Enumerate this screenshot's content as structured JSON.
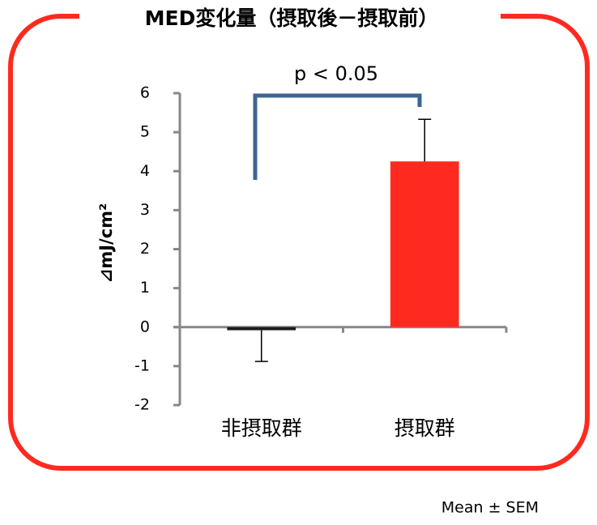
{
  "chart_data": {
    "type": "bar",
    "title": "MED変化量（摂取後－摂取前）",
    "y_label": "⊿mJ/cm²",
    "categories": [
      "非摂取群",
      "摂取群"
    ],
    "values": [
      -0.08,
      4.25
    ],
    "errors": [
      0.8,
      1.08
    ],
    "colors": [
      "#1a1a1a",
      "#ff2a1f"
    ],
    "ylim": [
      -2,
      6
    ],
    "yticks": [
      -2,
      -1,
      0,
      1,
      2,
      3,
      4,
      5,
      6
    ],
    "annotation": "p < 0.05",
    "footnote": "Mean ± SEM"
  }
}
